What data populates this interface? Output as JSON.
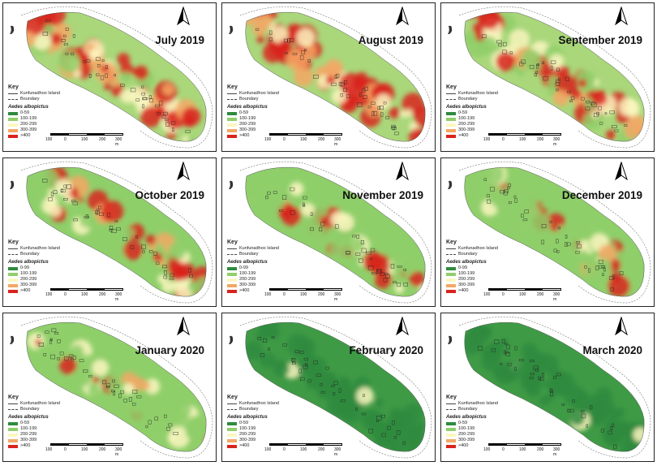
{
  "key": {
    "title": "Key",
    "island_label": "Kunfunadhoo Island",
    "boundary_label": "Boundary",
    "species": "Aedes albopictus"
  },
  "scale": {
    "labels": [
      "100",
      "0",
      "100",
      "200",
      "300 m"
    ]
  },
  "colors": {
    "c1": "#2e8b3e",
    "c2": "#8fcf6a",
    "c3": "#fbf7c0",
    "c4": "#f4a765",
    "c5": "#d9231d"
  },
  "panels": [
    {
      "title": "July 2019",
      "red_level": 0.85,
      "legend": [
        "0-59",
        "100-199",
        "200-299",
        "300-399",
        ">400"
      ]
    },
    {
      "title": "August 2019",
      "red_level": 1.0,
      "legend": [
        "0-59",
        "100-199",
        "200-299",
        "300-399",
        ">400"
      ]
    },
    {
      "title": "September 2019",
      "red_level": 0.6,
      "legend": [
        "0-59",
        "100-199",
        "200-299",
        "300-399",
        ">400"
      ]
    },
    {
      "title": "October 2019",
      "red_level": 0.5,
      "legend": [
        "0-99",
        "100-199",
        "200-299",
        "300-399",
        ">400"
      ]
    },
    {
      "title": "November 2019",
      "red_level": 0.35,
      "legend": [
        "0-99",
        "100-199",
        "200-299",
        "300-399",
        ">400"
      ]
    },
    {
      "title": "December 2019",
      "red_level": 0.3,
      "legend": [
        "0-99",
        "100-199",
        "200-299",
        "300-399",
        ">400"
      ]
    },
    {
      "title": "January 2020",
      "red_level": 0.2,
      "legend": [
        "0-59",
        "100-199",
        "200-299",
        "300-399",
        ">400"
      ]
    },
    {
      "title": "February 2020",
      "red_level": 0.08,
      "legend": [
        "0-59",
        "100-199",
        "200-299",
        "300-399",
        ">400"
      ]
    },
    {
      "title": "March 2020",
      "red_level": 0.02,
      "legend": [
        "0-59",
        "100-199",
        "200-299",
        "300-399",
        ">400"
      ]
    }
  ]
}
